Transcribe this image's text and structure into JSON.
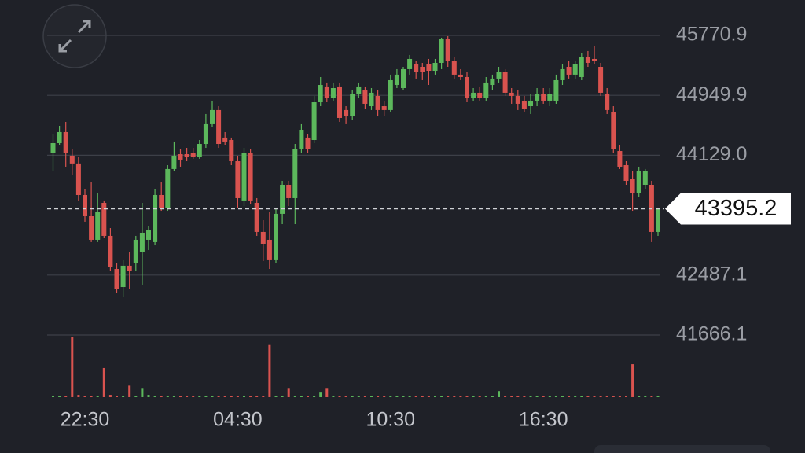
{
  "chart_data": {
    "type": "candlestick",
    "categories": [
      null,
      null,
      null,
      null,
      null,
      "22:30",
      null,
      null,
      null,
      null,
      null,
      null,
      null,
      null,
      null,
      null,
      null,
      null,
      null,
      null,
      null,
      null,
      null,
      null,
      null,
      null,
      null,
      null,
      null,
      "04:30",
      null,
      null,
      null,
      null,
      null,
      null,
      null,
      null,
      null,
      null,
      null,
      null,
      null,
      null,
      null,
      null,
      null,
      null,
      null,
      null,
      null,
      null,
      null,
      "10:30",
      null,
      null,
      null,
      null,
      null,
      null,
      null,
      null,
      null,
      null,
      null,
      null,
      null,
      null,
      null,
      null,
      null,
      null,
      null,
      null,
      null,
      null,
      null,
      "16:30",
      null,
      null,
      null,
      null,
      null,
      null,
      null,
      null,
      null,
      null,
      null,
      null,
      null,
      null,
      null,
      null,
      null,
      null
    ],
    "open": [
      44155,
      44295,
      44446,
      44123,
      44016,
      43584,
      43293,
      42970,
      43476,
      43024,
      42571,
      42323,
      42615,
      42647,
      42808,
      42970,
      42938,
      43584,
      43401,
      43940,
      44144,
      44144,
      44155,
      44101,
      44284,
      44554,
      44748,
      44371,
      44338,
      44047,
      43509,
      44155,
      43476,
      43078,
      42970,
      42701,
      43326,
      43724,
      43541,
      44209,
      44371,
      44338,
      44855,
      45071,
      44909,
      45071,
      44748,
      44661,
      44963,
      45017,
      44801,
      44942,
      44801,
      44748,
      45092,
      45049,
      45308,
      45373,
      45340,
      45373,
      45286,
      45394,
      45717,
      45416,
      45233,
      45200,
      44909,
      44985,
      44909,
      45092,
      45179,
      45265,
      44985,
      44942,
      44877,
      44801,
      44877,
      44963,
      44877,
      44877,
      45157,
      45340,
      45233,
      45200,
      45480,
      45448,
      45340,
      44963,
      44726,
      44187,
      43993,
      43800,
      43616,
      43724,
      43724,
      43078
    ],
    "high": [
      44424,
      44532,
      44586,
      44209,
      44101,
      43670,
      43756,
      43616,
      43509,
      43131,
      42647,
      42701,
      42808,
      43024,
      43476,
      43153,
      43670,
      43756,
      43993,
      44317,
      44209,
      44230,
      44230,
      44338,
      44694,
      44877,
      44801,
      44446,
      44371,
      44123,
      44230,
      44209,
      43541,
      43239,
      43347,
      43401,
      43778,
      43778,
      44284,
      44554,
      44424,
      44942,
      45200,
      45125,
      45125,
      45125,
      44801,
      45017,
      45125,
      45071,
      45049,
      45017,
      44877,
      45233,
      45308,
      45340,
      45502,
      45416,
      45394,
      45448,
      45448,
      45739,
      45760,
      45480,
      45308,
      45265,
      45049,
      45071,
      45200,
      45233,
      45340,
      45308,
      45049,
      45017,
      44942,
      44963,
      45049,
      45049,
      45049,
      45233,
      45373,
      45416,
      45416,
      45523,
      45556,
      45631,
      45394,
      45049,
      44801,
      44263,
      44047,
      43908,
      43972,
      43940,
      43778,
      43401
    ],
    "low": [
      43908,
      44263,
      43972,
      43864,
      43509,
      43218,
      42938,
      42938,
      43002,
      42539,
      42248,
      42183,
      42291,
      42539,
      42356,
      42830,
      42894,
      43368,
      43368,
      43908,
      43972,
      44047,
      44080,
      44080,
      44230,
      44511,
      44230,
      44263,
      43993,
      43401,
      43433,
      43455,
      43024,
      42679,
      42571,
      42647,
      43185,
      43433,
      43185,
      44155,
      44155,
      44295,
      44801,
      44855,
      44877,
      44586,
      44554,
      44618,
      44909,
      44769,
      44748,
      44661,
      44661,
      44726,
      45049,
      45017,
      45233,
      45179,
      45157,
      45092,
      45233,
      45308,
      45340,
      45179,
      45157,
      44855,
      44877,
      44877,
      44877,
      45017,
      45125,
      44942,
      44834,
      44748,
      44726,
      44694,
      44801,
      44834,
      44801,
      44834,
      45092,
      45179,
      45179,
      45157,
      45340,
      45373,
      44942,
      44694,
      44155,
      43940,
      43724,
      43368,
      43562,
      43670,
      42938,
      43024
    ],
    "close": [
      44295,
      44446,
      44155,
      44016,
      43584,
      43293,
      42970,
      43347,
      43024,
      42593,
      42291,
      42615,
      42539,
      42970,
      43067,
      43099,
      43584,
      43401,
      43940,
      44123,
      44069,
      44101,
      44101,
      44284,
      44554,
      44748,
      44284,
      44317,
      44047,
      43541,
      44155,
      43509,
      43078,
      42916,
      42701,
      43326,
      43724,
      43541,
      44209,
      44478,
      44209,
      44855,
      45092,
      44909,
      45049,
      44640,
      44661,
      44963,
      45071,
      44834,
      44985,
      44748,
      44748,
      45157,
      45233,
      45308,
      45448,
      45265,
      45265,
      45286,
      45394,
      45717,
      45416,
      45233,
      45200,
      44909,
      44985,
      44909,
      45125,
      45179,
      45265,
      44985,
      44942,
      44834,
      44769,
      44877,
      44963,
      44877,
      44963,
      45157,
      45308,
      45233,
      45373,
      45480,
      45394,
      45416,
      44985,
      44748,
      44209,
      43972,
      43778,
      43616,
      43908,
      43908,
      43078,
      43395.2
    ],
    "volume": [
      1,
      1,
      1,
      78,
      3,
      1,
      2,
      1,
      38,
      3,
      1,
      1,
      15,
      1,
      12,
      3,
      1,
      1,
      1,
      1,
      1,
      1,
      1,
      1,
      1,
      1,
      1,
      1,
      1,
      1,
      1,
      1,
      1,
      1,
      68,
      1,
      1,
      12,
      1,
      1,
      1,
      1,
      6,
      12,
      1,
      1,
      1,
      1,
      1,
      1,
      1,
      1,
      1,
      1,
      1,
      1,
      1,
      1,
      1,
      1,
      1,
      1,
      1,
      1,
      1,
      1,
      1,
      1,
      1,
      1,
      8,
      1,
      1,
      1,
      1,
      1,
      1,
      1,
      1,
      1,
      1,
      1,
      1,
      1,
      1,
      1,
      1,
      1,
      1,
      1,
      1,
      43,
      1,
      1,
      1,
      1
    ],
    "volume_lim": [
      0,
      80
    ],
    "up_color": "#5cb85c",
    "down_color": "#d9534f",
    "ylim": [
      41666.1,
      45770.9
    ],
    "yticks": [
      45770.9,
      44949.9,
      {
        "value": 44129,
        "label": "44129.0"
      },
      42487.1,
      41666.1
    ],
    "grid": true,
    "current_price": 43395.2
  }
}
